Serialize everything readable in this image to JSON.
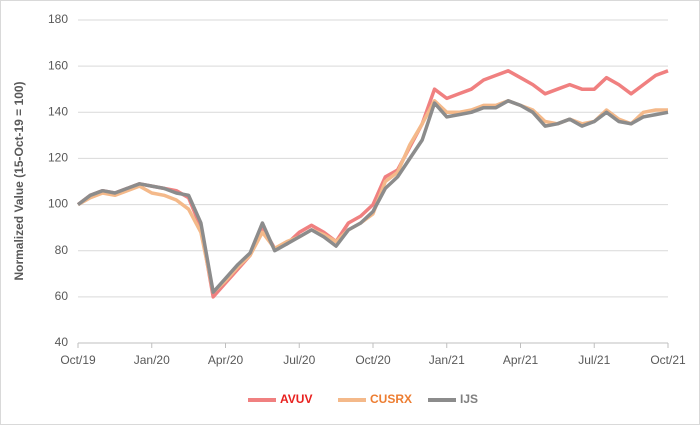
{
  "chart_data": {
    "type": "line",
    "y_label": "Normalized Value (15-Oct-19 = 100)",
    "x": [
      0,
      0.5,
      1,
      1.5,
      2,
      2.5,
      3,
      3.5,
      4,
      4.5,
      5,
      5.5,
      6,
      6.5,
      7,
      7.5,
      8,
      8.5,
      9,
      9.5,
      10,
      10.5,
      11,
      11.5,
      12,
      12.5,
      13,
      13.5,
      14,
      14.5,
      15,
      15.5,
      16,
      16.5,
      17,
      17.5,
      18,
      18.5,
      19,
      19.5,
      20,
      20.5,
      21,
      21.5,
      22,
      22.5,
      23,
      23.5,
      24
    ],
    "series": [
      {
        "name": "AVUV",
        "color": "#f08080",
        "legend_color": "#e8211f",
        "values": [
          100,
          104,
          106,
          105,
          107,
          109,
          108,
          107,
          106,
          103,
          90,
          60,
          66,
          72,
          78,
          90,
          81,
          83,
          88,
          91,
          88,
          84,
          92,
          95,
          100,
          112,
          115,
          125,
          135,
          150,
          146,
          148,
          150,
          154,
          156,
          158,
          155,
          152,
          148,
          150,
          152,
          150,
          150,
          155,
          152,
          148,
          152,
          156,
          158
        ]
      },
      {
        "name": "CUSRX",
        "color": "#f4b98a",
        "legend_color": "#ed7d31",
        "values": [
          100,
          103,
          105,
          104,
          106,
          108,
          105,
          104,
          102,
          98,
          88,
          62,
          67,
          73,
          78,
          88,
          81,
          84,
          86,
          89,
          87,
          84,
          89,
          92,
          96,
          110,
          114,
          126,
          135,
          145,
          140,
          140,
          141,
          143,
          143,
          145,
          143,
          141,
          136,
          135,
          137,
          135,
          136,
          141,
          137,
          135,
          140,
          141,
          141
        ]
      },
      {
        "name": "IJS",
        "color": "#8c8c8c",
        "legend_color": "#7f7f7f",
        "values": [
          100,
          104,
          106,
          105,
          107,
          109,
          108,
          107,
          105,
          104,
          92,
          62,
          68,
          74,
          79,
          92,
          80,
          83,
          86,
          89,
          86,
          82,
          89,
          92,
          97,
          107,
          112,
          120,
          128,
          144,
          138,
          139,
          140,
          142,
          142,
          145,
          143,
          140,
          134,
          135,
          137,
          134,
          136,
          140,
          136,
          135,
          138,
          139,
          140
        ]
      }
    ],
    "xlim": [
      0,
      24
    ],
    "xticks": [
      {
        "value": 0,
        "label": "Oct/19"
      },
      {
        "value": 3,
        "label": "Jan/20"
      },
      {
        "value": 6,
        "label": "Apr/20"
      },
      {
        "value": 9,
        "label": "Jul/20"
      },
      {
        "value": 12,
        "label": "Oct/20"
      },
      {
        "value": 15,
        "label": "Jan/21"
      },
      {
        "value": 18,
        "label": "Apr/21"
      },
      {
        "value": 21,
        "label": "Jul/21"
      },
      {
        "value": 24,
        "label": "Oct/21"
      }
    ],
    "ylim": [
      40,
      180
    ],
    "yticks": [
      40,
      60,
      80,
      100,
      120,
      140,
      160,
      180
    ],
    "grid": true
  }
}
